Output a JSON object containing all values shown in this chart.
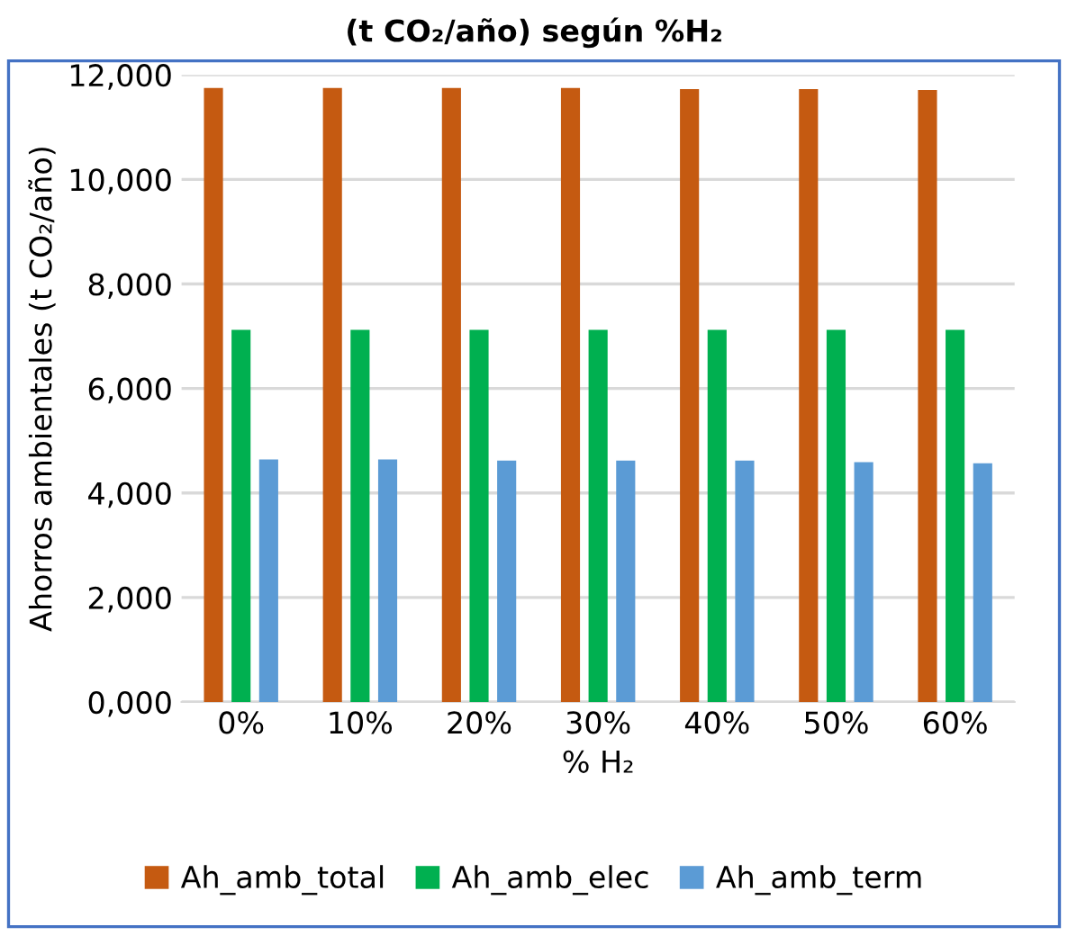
{
  "chart_data": {
    "type": "bar",
    "title": "(t CO₂/año) según %H₂",
    "categories": [
      "0%",
      "10%",
      "20%",
      "30%",
      "40%",
      "50%",
      "60%"
    ],
    "series": [
      {
        "name": "Ah_amb_total",
        "color": "#c55a11",
        "values": [
          11750,
          11750,
          11750,
          11750,
          11730,
          11730,
          11710
        ]
      },
      {
        "name": "Ah_amb_elec",
        "color": "#00b050",
        "values": [
          7120,
          7120,
          7120,
          7120,
          7120,
          7120,
          7120
        ]
      },
      {
        "name": "Ah_amb_term",
        "color": "#5b9bd5",
        "values": [
          4640,
          4640,
          4620,
          4620,
          4620,
          4590,
          4570
        ]
      }
    ],
    "xlabel": "% H₂",
    "ylabel": "Ahorros ambientales (t CO₂/año)",
    "ylim": [
      0,
      12000
    ],
    "yticks": [
      {
        "value": 0,
        "label": "0,000"
      },
      {
        "value": 2000,
        "label": "2,000"
      },
      {
        "value": 4000,
        "label": "4,000"
      },
      {
        "value": 6000,
        "label": "6,000"
      },
      {
        "value": 8000,
        "label": "8,000"
      },
      {
        "value": 10000,
        "label": "10,000"
      },
      {
        "value": 12000,
        "label": "12,000"
      }
    ],
    "grid": "y",
    "legend": "bottom"
  }
}
